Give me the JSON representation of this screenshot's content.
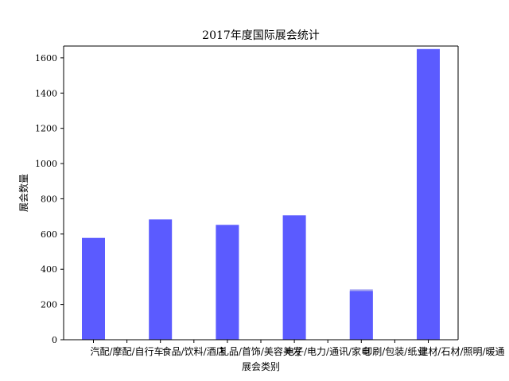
{
  "chart_data": {
    "type": "bar",
    "title": "2017年度国际展会统计",
    "xlabel": "展会类别",
    "ylabel": "展会数量",
    "categories": [
      "汽配/摩配/自行车",
      "食品/饮料/酒店",
      "礼品/首饰/美容美发",
      "电子/电力/通讯/家电",
      "印刷/包装/纸业",
      "建材/石材/照明/暖通"
    ],
    "values": [
      578,
      683,
      652,
      706,
      275,
      1650
    ],
    "overlay_marks": [
      {
        "category": "印刷/包装/纸业",
        "value": 286
      }
    ],
    "yticks": [
      0,
      200,
      400,
      600,
      800,
      1000,
      1200,
      1400,
      1600
    ],
    "ylim": [
      0,
      1667
    ],
    "grid": false,
    "legend": "none",
    "colors": {
      "bar": "#5b5bff",
      "bar_overlay": "#9b9bf0",
      "axis": "#000000"
    }
  }
}
